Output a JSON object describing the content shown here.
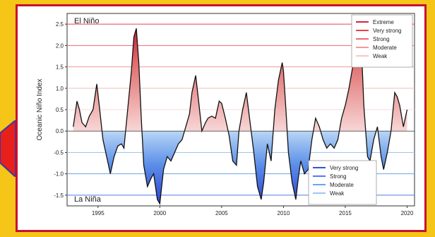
{
  "chart_data": {
    "type": "area",
    "ylabel": "Oceanic Niño Index",
    "annotations": {
      "top": "El Niño",
      "bottom": "La Niña"
    },
    "ylim": [
      -1.75,
      2.75
    ],
    "xlim": [
      1992.5,
      2020.6
    ],
    "x_ticks": [
      1995,
      2000,
      2005,
      2010,
      2015,
      2020
    ],
    "y_ticks": [
      -1.5,
      -1.0,
      -0.5,
      0.0,
      0.5,
      1.0,
      1.5,
      2.0,
      2.5
    ],
    "thresholds": [
      {
        "value": 2.5,
        "color": "#e8414d"
      },
      {
        "value": 2.0,
        "color": "#ef6a70"
      },
      {
        "value": 1.5,
        "color": "#f39a9a"
      },
      {
        "value": 1.0,
        "color": "#f6bcbc"
      },
      {
        "value": 0.5,
        "color": "#f9d9d9"
      },
      {
        "value": -0.5,
        "color": "#9cc7f2"
      },
      {
        "value": -1.0,
        "color": "#6aa6ec"
      },
      {
        "value": -1.5,
        "color": "#4f7de8"
      }
    ],
    "legend_el_nino": {
      "placement": "top-right",
      "entries": [
        {
          "label": "Extreme",
          "color": "#d7263d"
        },
        {
          "label": "Very strong",
          "color": "#e8414d"
        },
        {
          "label": "Strong",
          "color": "#ef6a70"
        },
        {
          "label": "Moderate",
          "color": "#f39a9a"
        },
        {
          "label": "Weak",
          "color": "#f6c7c7"
        }
      ]
    },
    "legend_la_nina": {
      "placement": "bottom-right",
      "entries": [
        {
          "label": "Very strong",
          "color": "#2f55d4"
        },
        {
          "label": "Strong",
          "color": "#4f7de8"
        },
        {
          "label": "Moderate",
          "color": "#6aa6ec"
        },
        {
          "label": "Weak",
          "color": "#9cc7f2"
        }
      ]
    },
    "series": [
      {
        "x": [
          1993.0,
          1993.3,
          1993.5,
          1993.7,
          1994.0,
          1994.3,
          1994.6,
          1994.9,
          1995.1,
          1995.4,
          1995.7,
          1996.0,
          1996.3,
          1996.6,
          1996.9,
          1997.1,
          1997.4,
          1997.7,
          1997.9,
          1998.1,
          1998.3,
          1998.5,
          1998.7,
          1999.0,
          1999.3,
          1999.5,
          1999.8,
          2000.0,
          2000.3,
          2000.6,
          2000.9,
          2001.2,
          2001.5,
          2001.8,
          2002.1,
          2002.4,
          2002.6,
          2002.9,
          2003.1,
          2003.4,
          2003.7,
          2003.9,
          2004.2,
          2004.5,
          2004.8,
          2005.0,
          2005.3,
          2005.6,
          2005.9,
          2006.2,
          2006.4,
          2006.7,
          2007.0,
          2007.3,
          2007.6,
          2007.9,
          2008.2,
          2008.4,
          2008.7,
          2009.0,
          2009.3,
          2009.6,
          2009.9,
          2010.0,
          2010.2,
          2010.4,
          2010.7,
          2011.0,
          2011.2,
          2011.4,
          2011.7,
          2012.0,
          2012.3,
          2012.6,
          2012.9,
          2013.2,
          2013.5,
          2013.8,
          2014.1,
          2014.4,
          2014.7,
          2015.0,
          2015.3,
          2015.6,
          2015.8,
          2015.95,
          2016.1,
          2016.3,
          2016.5,
          2016.8,
          2017.0,
          2017.3,
          2017.6,
          2017.9,
          2018.1,
          2018.4,
          2018.7,
          2019.0,
          2019.2,
          2019.4,
          2019.7,
          2020.0
        ],
        "y": [
          0.1,
          0.7,
          0.5,
          0.2,
          0.1,
          0.35,
          0.5,
          1.1,
          0.6,
          -0.2,
          -0.6,
          -1.0,
          -0.6,
          -0.35,
          -0.3,
          -0.4,
          0.5,
          1.4,
          2.2,
          2.4,
          1.6,
          0.3,
          -0.8,
          -1.3,
          -1.1,
          -1.0,
          -1.6,
          -1.7,
          -0.9,
          -0.6,
          -0.7,
          -0.5,
          -0.3,
          -0.2,
          0.1,
          0.4,
          0.9,
          1.3,
          0.8,
          0.0,
          0.2,
          0.3,
          0.35,
          0.3,
          0.7,
          0.65,
          0.3,
          -0.1,
          -0.7,
          -0.8,
          0.0,
          0.5,
          0.9,
          0.2,
          -0.5,
          -1.3,
          -1.6,
          -1.2,
          -0.3,
          -0.7,
          0.5,
          1.2,
          1.6,
          1.4,
          0.5,
          -0.5,
          -1.2,
          -1.6,
          -1.1,
          -0.7,
          -1.0,
          -0.9,
          -0.2,
          0.3,
          0.1,
          -0.2,
          -0.4,
          -0.3,
          -0.4,
          -0.2,
          0.3,
          0.6,
          1.0,
          1.5,
          2.1,
          2.5,
          2.55,
          2.0,
          0.6,
          -0.6,
          -0.7,
          -0.2,
          0.1,
          -0.6,
          -0.9,
          -0.5,
          0.0,
          0.9,
          0.8,
          0.6,
          0.1,
          0.5
        ]
      }
    ]
  }
}
